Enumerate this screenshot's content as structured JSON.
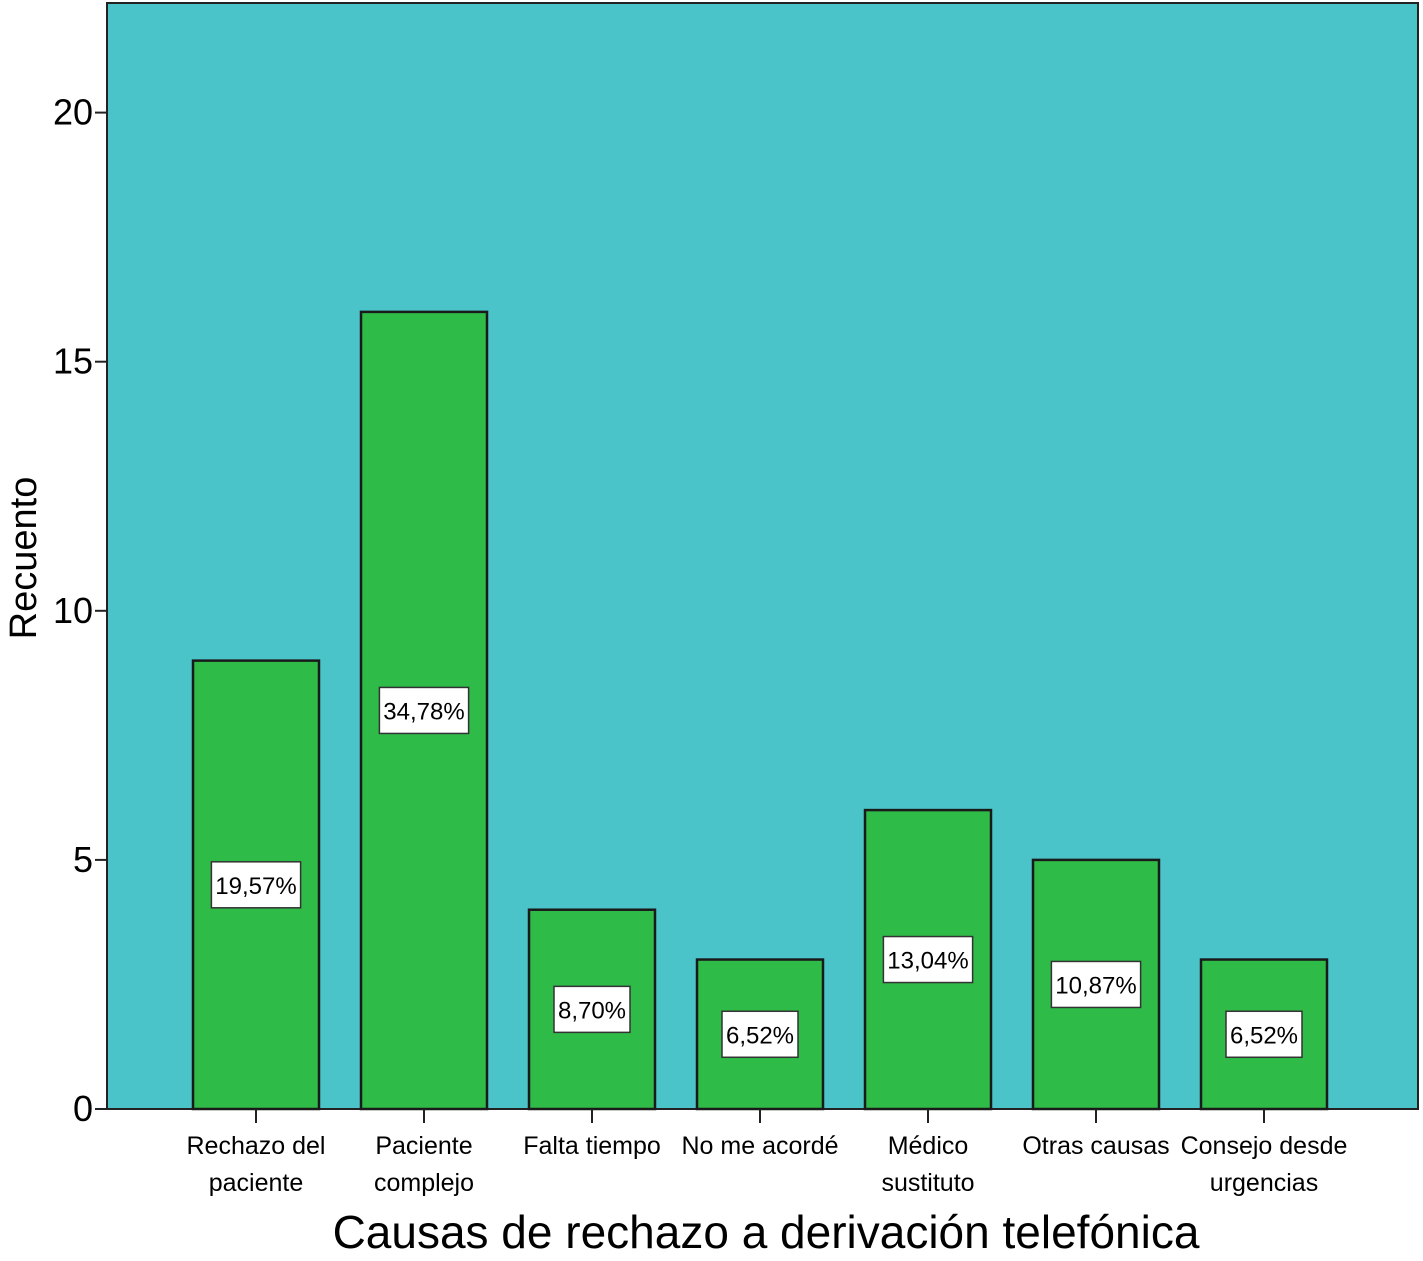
{
  "chart_data": {
    "type": "bar",
    "categories": [
      [
        "Rechazo del",
        "paciente"
      ],
      [
        "Paciente",
        "complejo"
      ],
      [
        "Falta tiempo"
      ],
      [
        "No me acordé"
      ],
      [
        "Médico",
        "sustituto"
      ],
      [
        "Otras causas"
      ],
      [
        "Consejo desde",
        "urgencias"
      ]
    ],
    "values": [
      9,
      16,
      4,
      3,
      6,
      5,
      3
    ],
    "data_labels": [
      "19,57%",
      "34,78%",
      "8,70%",
      "6,52%",
      "13,04%",
      "10,87%",
      "6,52%"
    ],
    "xlabel": "Causas de rechazo a derivación telefónica",
    "ylabel": "Recuento",
    "ylim": [
      0,
      22.2
    ],
    "yticks": [
      0,
      5,
      10,
      15,
      20
    ],
    "grid": false,
    "colors": {
      "plot_background": "#4AC4C8",
      "bar_fill": "#2FBB48",
      "bar_stroke": "#1A1A1A",
      "label_box": "#FFFFFF"
    }
  }
}
